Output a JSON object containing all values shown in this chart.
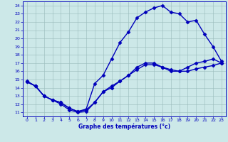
{
  "xlabel": "Graphe des températures (°c)",
  "bg_color": "#cce8e8",
  "line_color": "#0000bb",
  "xlim": [
    -0.5,
    23.5
  ],
  "ylim": [
    10.5,
    24.5
  ],
  "xticks": [
    0,
    1,
    2,
    3,
    4,
    5,
    6,
    7,
    8,
    9,
    10,
    11,
    12,
    13,
    14,
    15,
    16,
    17,
    18,
    19,
    20,
    21,
    22,
    23
  ],
  "yticks": [
    11,
    12,
    13,
    14,
    15,
    16,
    17,
    18,
    19,
    20,
    21,
    22,
    23,
    24
  ],
  "line1_x": [
    0,
    1,
    2,
    3,
    4,
    5,
    6,
    7,
    8,
    9,
    10,
    11,
    12,
    13,
    14,
    15,
    16,
    17,
    18,
    19,
    20,
    21,
    22,
    23
  ],
  "line1_y": [
    14.7,
    14.2,
    13.0,
    12.5,
    12.0,
    11.3,
    11.0,
    11.1,
    12.2,
    13.5,
    14.2,
    14.8,
    15.5,
    16.2,
    16.8,
    16.8,
    16.5,
    16.0,
    16.0,
    16.0,
    16.3,
    16.5,
    16.7,
    17.0
  ],
  "line2_x": [
    0,
    1,
    2,
    3,
    4,
    5,
    6,
    7,
    8,
    9,
    10,
    11,
    12,
    13,
    14,
    15,
    16,
    17,
    18,
    19,
    20,
    21,
    22,
    23
  ],
  "line2_y": [
    14.7,
    14.2,
    13.0,
    12.5,
    12.2,
    11.5,
    11.1,
    11.4,
    14.5,
    15.5,
    17.5,
    19.5,
    20.8,
    22.5,
    23.2,
    23.7,
    24.0,
    23.2,
    23.0,
    22.0,
    22.2,
    20.5,
    19.0,
    17.2
  ],
  "line3_x": [
    0,
    1,
    2,
    3,
    4,
    5,
    6,
    7,
    8,
    9,
    10,
    11,
    12,
    13,
    14,
    15,
    16,
    17,
    18,
    19,
    20,
    21,
    22,
    23
  ],
  "line3_y": [
    14.8,
    14.2,
    13.0,
    12.5,
    12.2,
    11.5,
    11.1,
    11.3,
    12.2,
    13.5,
    14.0,
    14.8,
    15.5,
    16.5,
    17.0,
    17.0,
    16.5,
    16.2,
    16.0,
    16.5,
    17.0,
    17.2,
    17.5,
    17.0
  ],
  "grid_color": "#99bbbb",
  "marker": "D",
  "markersize": 2.5,
  "linewidth": 1.0,
  "tick_fontsize": 4.5,
  "xlabel_fontsize": 5.5
}
